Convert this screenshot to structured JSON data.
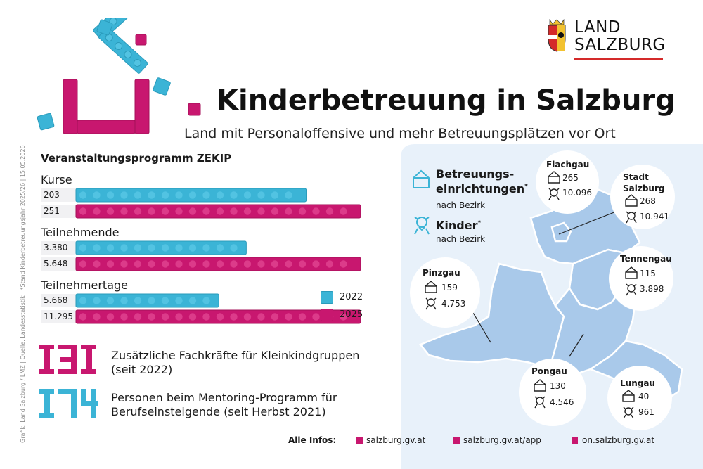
{
  "header": {
    "title": "Kinderbetreuung in Salzburg",
    "subtitle": "Land mit Personaloffensive und mehr Betreuungsplätzen vor Ort",
    "logo_line1": "LAND",
    "logo_line2": "SALZBURG",
    "credit": "Grafik: Land Salzburg / LMZ | Quelle: Landesstatistik | *Stand Kinderbetreuungsjahr 2025/26 | 15.05.2026"
  },
  "colors": {
    "cyan": "#3bb4d6",
    "magenta": "#c8176f",
    "map": "#a9c9ea",
    "map_bg": "#e8f1fa"
  },
  "chart_data": {
    "type": "bar",
    "title": "Veranstaltungsprogramm ZEKIP",
    "legend_position": "right",
    "series_names": [
      "2022",
      "2025"
    ],
    "groups": [
      {
        "label": "Kurse",
        "values": [
          {
            "year": "2022",
            "value": 203,
            "label": "203"
          },
          {
            "year": "2025",
            "value": 251,
            "label": "251"
          }
        ]
      },
      {
        "label": "Teilnehmende",
        "values": [
          {
            "year": "2022",
            "value": 3380,
            "label": "3.380"
          },
          {
            "year": "2025",
            "value": 5648,
            "label": "5.648"
          }
        ]
      },
      {
        "label": "Teilnehmertage",
        "values": [
          {
            "year": "2022",
            "value": 5668,
            "label": "5.668"
          },
          {
            "year": "2025",
            "value": 11295,
            "label": "11.295"
          }
        ]
      }
    ]
  },
  "stats": [
    {
      "number": "131",
      "text_line1": "Zusätzliche Fachkräfte für Kleinkindgruppen",
      "text_line2": "(seit 2022)"
    },
    {
      "number": "174",
      "text_line1": "Personen beim Mentoring-Programm für",
      "text_line2": "Berufseinsteigende (seit Herbst 2021)"
    }
  ],
  "map": {
    "legend": {
      "facilities_line1": "Betreuungs-",
      "facilities_line2": "einrichtungen",
      "facilities_star": "*",
      "facilities_sub": "nach Bezirk",
      "children": "Kinder",
      "children_star": "*",
      "children_sub": "nach Bezirk"
    },
    "districts": [
      {
        "name_line1": "Flachgau",
        "name_line2": "",
        "facilities": "265",
        "children": "10.096"
      },
      {
        "name_line1": "Stadt",
        "name_line2": "Salzburg",
        "facilities": "268",
        "children": "10.941"
      },
      {
        "name_line1": "Tennengau",
        "name_line2": "",
        "facilities": "115",
        "children": "3.898"
      },
      {
        "name_line1": "Pinzgau",
        "name_line2": "",
        "facilities": "159",
        "children": "4.753"
      },
      {
        "name_line1": "Pongau",
        "name_line2": "",
        "facilities": "130",
        "children": "4.546"
      },
      {
        "name_line1": "Lungau",
        "name_line2": "",
        "facilities": "40",
        "children": "961"
      }
    ]
  },
  "footer": {
    "label": "Alle Infos:",
    "links": [
      "salzburg.gv.at",
      "salzburg.gv.at/app",
      "on.salzburg.gv.at"
    ]
  },
  "icons": [
    "house-icon",
    "child-icon",
    "coat-of-arms-icon",
    "lego-house-icon"
  ]
}
